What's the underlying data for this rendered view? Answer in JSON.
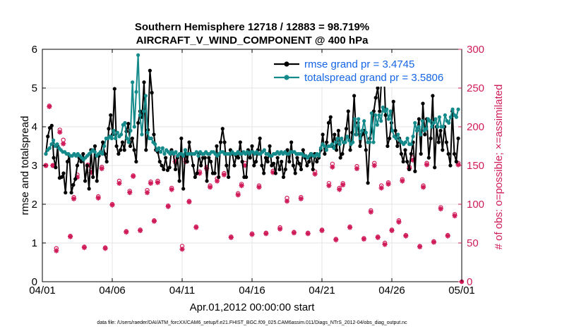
{
  "chart_data": {
    "type": "line",
    "title_line1": "Southern Hemisphere 12718 / 12883 = 98.719%",
    "title_line2": "AIRCRAFT_V_WIND_COMPONENT @ 400 hPa",
    "xlabel": "Apr.01,2012 00:00:00 start",
    "ylabel_left": "rmse and totalspread",
    "ylabel_right": "# of obs: o=possible; ×=assimilated",
    "footer": "data file: /Users/raeder/DAI/ATM_forcXX/CAM6_setup/f.e21.FHIST_BGC.f09_025.CAM6assim.011/Diags_NTrS_2012-04/obs_diag_output.nc",
    "xlim": [
      0,
      30
    ],
    "ylim_left": [
      0,
      6
    ],
    "ylim_right": [
      0,
      300
    ],
    "x_ticks": [
      0,
      5,
      10,
      15,
      20,
      25,
      30
    ],
    "x_tick_labels": [
      "04/01",
      "04/06",
      "04/11",
      "04/16",
      "04/21",
      "04/26",
      "05/01"
    ],
    "y_left_ticks": [
      "0",
      "1",
      "2",
      "3",
      "4",
      "5",
      "6"
    ],
    "y_right_ticks": [
      "0",
      "50",
      "100",
      "150",
      "200",
      "250",
      "300"
    ],
    "colors": {
      "rmse": "#000000",
      "spread": "#148a8a",
      "obs": "#d01b5a",
      "legend_text": "#1565e6"
    },
    "series": [
      {
        "name": "rmse",
        "legend": "rmse grand pr = 3.4745",
        "values": [
          3.3,
          3.75,
          3.97,
          4.03,
          3.2,
          2.95,
          3.5,
          2.68,
          2.7,
          2.8,
          2.3,
          3.1,
          3.25,
          2.3,
          2.5,
          2.65,
          3.0,
          3.2,
          3.1,
          3.3,
          2.6,
          3.0,
          2.4,
          3.4,
          2.7,
          3.5,
          2.6,
          3.25,
          3.35,
          3.6,
          3.3,
          3.1,
          3.95,
          4.3,
          3.8,
          4.98,
          3.5,
          3.3,
          3.4,
          3.6,
          3.4,
          3.88,
          4.08,
          3.5,
          3.7,
          3.4,
          3.1,
          4.1,
          4.4,
          4.25,
          5.15,
          3.4,
          3.92,
          5.45,
          4.88,
          3.8,
          3.4,
          3.35,
          3.1,
          3.0,
          2.9,
          3.2,
          2.88,
          2.95,
          3.4,
          3.3,
          2.9,
          3.2,
          2.6,
          3.7,
          2.4,
          3.4,
          3.1,
          3.6,
          3.3,
          3.0,
          2.7,
          2.8,
          3.3,
          3.0,
          3.2,
          3.2,
          2.6,
          3.2,
          3.1,
          2.8,
          2.8,
          3.5,
          2.7,
          3.6,
          3.95,
          3.6,
          3.0,
          2.7,
          3.4,
          3.3,
          3.0,
          3.25,
          3.2,
          3.6,
          3.1,
          2.7,
          2.7,
          3.4,
          3.2,
          3.5,
          3.0,
          3.1,
          3.4,
          3.7,
          3.0,
          2.8,
          3.2,
          3.1,
          3.5,
          3.0,
          3.05,
          2.8,
          3.2,
          2.9,
          3.1,
          2.7,
          2.9,
          3.4,
          3.1,
          3.6,
          3.0,
          2.8,
          3.2,
          3.05,
          2.9,
          3.4,
          3.2,
          3.0,
          3.1,
          3.3,
          2.9,
          3.3,
          3.1,
          3.2,
          3.4,
          3.8,
          3.3,
          3.6,
          4.1,
          4.25,
          3.5,
          3.8,
          3.4,
          3.9,
          3.2,
          3.3,
          3.6,
          3.95,
          4.4,
          3.4,
          3.85,
          4.8,
          3.8,
          4.1,
          3.5,
          3.8,
          3.9,
          3.4,
          2.55,
          3.7,
          3.9,
          4.4,
          4.75,
          5.0,
          4.4,
          5.3,
          5.6,
          4.3,
          3.5,
          3.7,
          4.1,
          4.65,
          3.9,
          3.5,
          3.7,
          3.3,
          3.1,
          3.4,
          3.1,
          2.9,
          3.3,
          3.6,
          2.85,
          3.9,
          4.2,
          3.3,
          4.6,
          3.8,
          4.2,
          3.2,
          3.7,
          4.8,
          2.95,
          4.0,
          3.6,
          3.9,
          3.4,
          4.0,
          3.6,
          3.3,
          3.0,
          4.4,
          3.3,
          3.1,
          3.7
        ],
        "x_start": 0.25,
        "x_end": 29.75
      },
      {
        "name": "totalspread",
        "legend": "totalspread grand pr = 3.5806",
        "values": [
          3.3,
          3.4,
          3.45,
          3.55,
          3.65,
          3.5,
          3.55,
          3.45,
          3.4,
          3.35,
          3.35,
          3.3,
          3.3,
          3.25,
          3.25,
          3.3,
          3.25,
          3.3,
          3.25,
          3.2,
          3.15,
          3.2,
          3.25,
          3.3,
          3.35,
          3.4,
          3.35,
          3.25,
          3.3,
          3.35,
          3.3,
          3.5,
          3.7,
          3.7,
          3.75,
          3.7,
          3.9,
          3.7,
          3.85,
          3.75,
          3.8,
          4.05,
          4.1,
          3.7,
          3.6,
          3.9,
          5.15,
          4.0,
          4.9,
          5.85,
          4.3,
          3.8,
          4.4,
          4.8,
          3.85,
          3.7,
          3.7,
          3.6,
          3.55,
          3.4,
          3.45,
          3.35,
          3.45,
          3.3,
          3.4,
          3.35,
          3.3,
          3.35,
          3.3,
          3.35,
          3.25,
          3.3,
          3.3,
          3.25,
          3.4,
          3.3,
          3.3,
          3.3,
          3.3,
          3.3,
          3.35,
          3.25,
          3.35,
          3.3,
          3.3,
          3.35,
          3.3,
          3.3,
          3.35,
          3.35,
          3.3,
          3.25,
          3.3,
          3.35,
          3.35,
          3.3,
          3.3,
          3.3,
          3.3,
          3.35,
          3.3,
          3.3,
          3.35,
          3.3,
          3.3,
          3.35,
          3.3,
          3.35,
          3.3,
          3.35,
          3.35,
          3.3,
          3.35,
          3.3,
          3.3,
          3.35,
          3.4,
          3.3,
          3.3,
          3.25,
          3.25,
          3.3,
          3.3,
          3.35,
          3.3,
          3.35,
          3.3,
          3.35,
          3.3,
          3.3,
          3.35,
          3.35,
          3.35,
          3.3,
          3.3,
          3.3,
          3.3,
          3.25,
          3.25,
          3.2,
          3.25,
          3.3,
          3.25,
          3.25,
          3.3,
          3.25,
          3.45,
          3.55,
          3.5,
          3.4,
          3.5,
          3.5,
          3.55,
          3.45,
          3.6,
          3.7,
          3.55,
          3.7,
          3.6,
          3.6,
          3.75,
          3.65,
          3.55,
          3.6,
          4.2,
          3.8,
          4.2,
          3.7,
          3.9,
          4.15,
          3.85,
          3.6,
          3.6,
          4.35,
          3.6,
          4.3,
          4.05,
          4.3,
          4.15,
          4.5,
          4.4,
          4.45,
          4.2,
          4.4,
          3.9,
          3.75,
          3.7,
          3.8,
          3.65,
          3.6,
          3.55,
          3.6,
          3.7,
          3.55,
          3.55,
          3.75,
          4.1,
          3.9,
          4.0,
          3.8,
          4.15,
          3.9,
          3.95,
          4.2,
          4.15,
          4.0,
          4.1,
          4.2,
          4.0,
          4.25,
          4.0,
          4.0,
          4.3,
          4.15,
          4.1,
          4.25,
          4.45,
          4.3,
          4.25,
          4.45
        ],
        "x_start": 0.25,
        "x_end": 29.75
      }
    ],
    "obs_possible": [
      [
        0.25,
        150
      ],
      [
        0.5,
        227
      ],
      [
        0.75,
        150
      ],
      [
        1.0,
        43
      ],
      [
        1.25,
        196
      ],
      [
        1.5,
        183
      ],
      [
        2.0,
        59
      ],
      [
        2.25,
        109
      ],
      [
        2.5,
        138
      ],
      [
        3.0,
        45
      ],
      [
        3.25,
        151
      ],
      [
        3.5,
        144
      ],
      [
        4.0,
        110
      ],
      [
        4.25,
        148
      ],
      [
        4.5,
        44
      ],
      [
        5.0,
        100
      ],
      [
        5.5,
        130
      ],
      [
        6.0,
        65
      ],
      [
        6.25,
        117
      ],
      [
        6.5,
        137
      ],
      [
        7.0,
        67
      ],
      [
        7.5,
        118
      ],
      [
        7.75,
        129
      ],
      [
        8.0,
        79
      ],
      [
        8.25,
        130
      ],
      [
        9.0,
        98
      ],
      [
        9.25,
        121
      ],
      [
        9.5,
        160
      ],
      [
        10.0,
        46
      ],
      [
        10.25,
        159
      ],
      [
        10.5,
        104
      ],
      [
        11.0,
        71
      ],
      [
        11.25,
        142
      ],
      [
        11.75,
        148
      ],
      [
        12.0,
        124
      ],
      [
        12.5,
        133
      ],
      [
        13.0,
        140
      ],
      [
        13.5,
        58
      ],
      [
        14.0,
        114
      ],
      [
        14.25,
        126
      ],
      [
        14.5,
        153
      ],
      [
        15.0,
        62
      ],
      [
        15.5,
        124
      ],
      [
        16.0,
        63
      ],
      [
        16.5,
        143
      ],
      [
        17.0,
        70
      ],
      [
        17.5,
        108
      ],
      [
        18.0,
        64
      ],
      [
        18.5,
        109
      ],
      [
        19.0,
        63
      ],
      [
        19.5,
        142
      ],
      [
        20.0,
        67
      ],
      [
        20.5,
        127
      ],
      [
        20.75,
        152
      ],
      [
        21.0,
        55
      ],
      [
        21.25,
        121
      ],
      [
        21.5,
        127
      ],
      [
        22.0,
        71
      ],
      [
        22.5,
        149
      ],
      [
        23.0,
        56
      ],
      [
        23.5,
        92
      ],
      [
        23.75,
        153
      ],
      [
        24.0,
        58
      ],
      [
        24.25,
        124
      ],
      [
        24.5,
        50
      ],
      [
        24.75,
        128
      ],
      [
        25.0,
        67
      ],
      [
        25.5,
        79
      ],
      [
        25.75,
        132
      ],
      [
        26.0,
        60
      ],
      [
        26.25,
        148
      ],
      [
        26.5,
        160
      ],
      [
        27.0,
        46
      ],
      [
        27.25,
        124
      ],
      [
        27.5,
        153
      ],
      [
        28.0,
        52
      ],
      [
        28.5,
        96
      ],
      [
        29.0,
        60
      ],
      [
        29.5,
        87
      ],
      [
        29.75,
        153
      ]
    ],
    "obs_assimilated": [
      [
        0.25,
        150
      ],
      [
        0.5,
        226
      ],
      [
        0.75,
        150
      ],
      [
        1.0,
        40
      ],
      [
        1.25,
        193
      ],
      [
        1.5,
        178
      ],
      [
        2.0,
        58
      ],
      [
        2.25,
        107
      ],
      [
        2.5,
        135
      ],
      [
        3.0,
        44
      ],
      [
        3.25,
        150
      ],
      [
        3.5,
        141
      ],
      [
        4.0,
        108
      ],
      [
        4.25,
        146
      ],
      [
        4.5,
        43
      ],
      [
        5.0,
        99
      ],
      [
        5.5,
        127
      ],
      [
        6.0,
        64
      ],
      [
        6.25,
        115
      ],
      [
        6.5,
        136
      ],
      [
        7.0,
        66
      ],
      [
        7.5,
        115
      ],
      [
        7.75,
        127
      ],
      [
        8.0,
        78
      ],
      [
        8.25,
        128
      ],
      [
        9.0,
        97
      ],
      [
        9.25,
        119
      ],
      [
        9.5,
        155
      ],
      [
        10.0,
        42
      ],
      [
        10.25,
        155
      ],
      [
        10.5,
        103
      ],
      [
        11.0,
        70
      ],
      [
        11.25,
        140
      ],
      [
        11.75,
        146
      ],
      [
        12.0,
        122
      ],
      [
        12.5,
        130
      ],
      [
        13.0,
        138
      ],
      [
        13.5,
        57
      ],
      [
        14.0,
        112
      ],
      [
        14.25,
        124
      ],
      [
        14.5,
        150
      ],
      [
        15.0,
        61
      ],
      [
        15.5,
        122
      ],
      [
        16.0,
        62
      ],
      [
        16.5,
        141
      ],
      [
        17.0,
        68
      ],
      [
        17.5,
        104
      ],
      [
        18.0,
        63
      ],
      [
        18.5,
        107
      ],
      [
        19.0,
        62
      ],
      [
        19.5,
        139
      ],
      [
        20.0,
        66
      ],
      [
        20.5,
        124
      ],
      [
        20.75,
        148
      ],
      [
        21.0,
        54
      ],
      [
        21.25,
        119
      ],
      [
        21.5,
        125
      ],
      [
        22.0,
        70
      ],
      [
        22.5,
        146
      ],
      [
        23.0,
        55
      ],
      [
        23.5,
        90
      ],
      [
        23.75,
        150
      ],
      [
        24.0,
        57
      ],
      [
        24.25,
        121
      ],
      [
        24.5,
        48
      ],
      [
        24.75,
        126
      ],
      [
        25.0,
        66
      ],
      [
        25.5,
        77
      ],
      [
        25.75,
        130
      ],
      [
        26.0,
        59
      ],
      [
        26.25,
        146
      ],
      [
        26.5,
        157
      ],
      [
        27.0,
        45
      ],
      [
        27.25,
        122
      ],
      [
        27.5,
        151
      ],
      [
        28.0,
        51
      ],
      [
        28.5,
        94
      ],
      [
        29.0,
        59
      ],
      [
        29.5,
        85
      ],
      [
        29.75,
        151
      ]
    ],
    "origin_marker": "0"
  }
}
